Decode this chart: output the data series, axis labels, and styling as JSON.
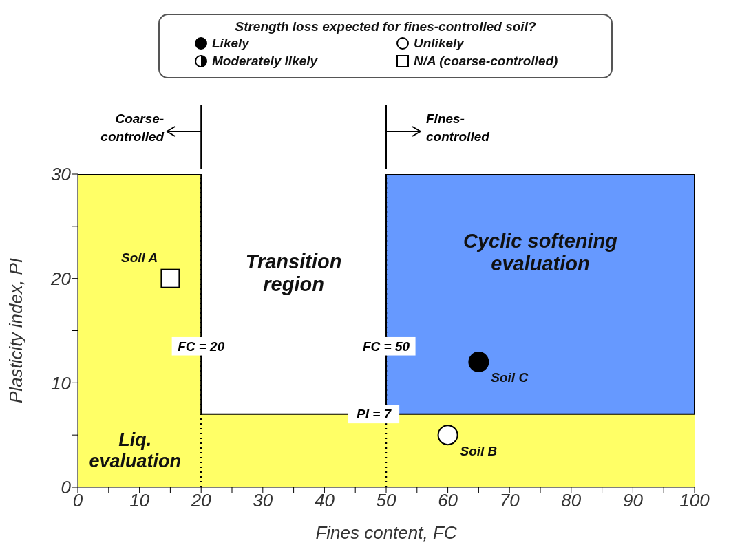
{
  "chart_data": {
    "type": "scatter",
    "legend_title": "Strength loss expected for fines-controlled soil?",
    "legend": "top",
    "xlabel": "Fines content, FC",
    "ylabel": "Plasticity index, PI",
    "xlim": [
      0,
      100
    ],
    "ylim": [
      0,
      30
    ],
    "xticks": [
      0,
      {
        "value": 5,
        "label": null
      },
      10,
      {
        "value": 15,
        "label": null
      },
      20,
      {
        "value": 25,
        "label": null
      },
      30,
      {
        "value": 35,
        "label": null
      },
      40,
      {
        "value": 45,
        "label": null
      },
      50,
      {
        "value": 55,
        "label": null
      },
      60,
      {
        "value": 65,
        "label": null
      },
      70,
      {
        "value": 75,
        "label": null
      },
      80,
      {
        "value": 85,
        "label": null
      },
      90,
      {
        "value": 95,
        "label": null
      },
      100
    ],
    "yticks": [
      0,
      {
        "value": 5,
        "label": null
      },
      10,
      {
        "value": 15,
        "label": null
      },
      20,
      {
        "value": 25,
        "label": null
      },
      30
    ],
    "series": [
      {
        "name": "Likely",
        "marker": "circle",
        "color": "#000000",
        "x": [
          65
        ],
        "values": [
          12
        ]
      },
      {
        "name": "Unlikely",
        "marker": "circle",
        "color": "#ffffff",
        "x": [
          60
        ],
        "values": [
          5
        ]
      },
      {
        "name": "Moderately likely",
        "marker": "half",
        "color": "#000000"
      },
      {
        "name": "N/A (coarse-controlled)",
        "marker": "square",
        "color": "#ffffff",
        "x": [
          15
        ],
        "values": [
          20
        ]
      }
    ],
    "bands": [
      {
        "axis": "x",
        "from": 0,
        "to": 20,
        "color": "#ffff66"
      },
      {
        "axis": "x",
        "from": 50,
        "to": 100,
        "color": "#6699ff"
      },
      {
        "axis": "y",
        "from": 0,
        "to": 7,
        "color": "#ffff66"
      }
    ],
    "ref_lines": [
      {
        "axis": "x",
        "value": 20,
        "label": "FC = 20",
        "line_style": "dotted"
      },
      {
        "axis": "x",
        "value": 50,
        "label": "FC = 50",
        "line_style": "dotted"
      },
      {
        "axis": "y",
        "value": 7,
        "label": "PI = 7",
        "line_style": "solid"
      }
    ],
    "annotations": [
      "Soil A",
      "Soil B",
      "Soil C",
      "Transition region",
      "Cyclic softening evaluation",
      "Liq. evaluation",
      "Coarse-controlled",
      "Fines-controlled"
    ]
  }
}
